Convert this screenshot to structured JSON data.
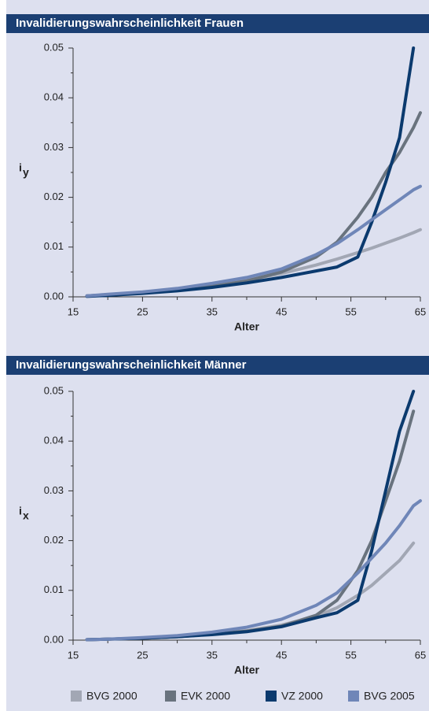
{
  "chart_data": [
    {
      "type": "line",
      "title": "Invalidierungswahrscheinlichkeit Frauen",
      "xlabel": "Alter",
      "ylabel": "i",
      "ylabel_sub": "y",
      "x": [
        17,
        20,
        25,
        30,
        35,
        40,
        45,
        50,
        53,
        56,
        58,
        60,
        62,
        64,
        65
      ],
      "xlim": [
        15,
        65
      ],
      "xticks": [
        15,
        25,
        35,
        45,
        55,
        65
      ],
      "ylim": [
        0,
        0.05
      ],
      "yticks": [
        {
          "value": 0,
          "label": "0.00"
        },
        {
          "value": 0.01,
          "label": "0.01"
        },
        {
          "value": 0.02,
          "label": "0.02"
        },
        {
          "value": 0.03,
          "label": "0.03"
        },
        {
          "value": 0.04,
          "label": "0.04"
        },
        {
          "value": 0.05,
          "label": "0.05"
        }
      ],
      "series": [
        {
          "name": "BVG 2000",
          "color": "#a2a7b4",
          "values": [
            0.0002,
            0.0004,
            0.0008,
            0.0014,
            0.0022,
            0.0033,
            0.0047,
            0.0064,
            0.0076,
            0.0089,
            0.0098,
            0.0108,
            0.0118,
            0.0129,
            0.0135
          ]
        },
        {
          "name": "EVK 2000",
          "color": "#69737e",
          "values": [
            0.0002,
            0.0004,
            0.0008,
            0.0013,
            0.0021,
            0.0032,
            0.005,
            0.008,
            0.011,
            0.016,
            0.02,
            0.025,
            0.029,
            0.034,
            0.037
          ]
        },
        {
          "name": "VZ 2000",
          "color": "#0b3a6e",
          "values": [
            0.0001,
            0.0003,
            0.0007,
            0.0012,
            0.0019,
            0.0028,
            0.0039,
            0.0052,
            0.006,
            0.008,
            0.015,
            0.023,
            0.032,
            0.05,
            null
          ]
        },
        {
          "name": "BVG 2005",
          "color": "#6f86b8",
          "values": [
            0.0002,
            0.0005,
            0.001,
            0.0017,
            0.0027,
            0.0039,
            0.0056,
            0.0085,
            0.0107,
            0.0135,
            0.0155,
            0.0175,
            0.0195,
            0.0215,
            0.0222
          ]
        }
      ]
    },
    {
      "type": "line",
      "title": "Invalidierungswahrscheinlichkeit Männer",
      "xlabel": "Alter",
      "ylabel": "i",
      "ylabel_sub": "x",
      "x": [
        17,
        20,
        25,
        30,
        35,
        40,
        45,
        50,
        53,
        56,
        58,
        60,
        62,
        64,
        65
      ],
      "xlim": [
        15,
        65
      ],
      "xticks": [
        15,
        25,
        35,
        45,
        55,
        65
      ],
      "ylim": [
        0,
        0.05
      ],
      "yticks": [
        {
          "value": 0,
          "label": "0.00"
        },
        {
          "value": 0.01,
          "label": "0.01"
        },
        {
          "value": 0.02,
          "label": "0.02"
        },
        {
          "value": 0.03,
          "label": "0.03"
        },
        {
          "value": 0.04,
          "label": "0.04"
        },
        {
          "value": 0.05,
          "label": "0.05"
        }
      ],
      "series": [
        {
          "name": "BVG 2000",
          "color": "#a2a7b4",
          "values": [
            0.0001,
            0.0002,
            0.0004,
            0.0007,
            0.0012,
            0.0019,
            0.003,
            0.0048,
            0.0065,
            0.009,
            0.011,
            0.0135,
            0.016,
            0.0195,
            null
          ]
        },
        {
          "name": "EVK 2000",
          "color": "#69737e",
          "values": [
            0.0001,
            0.0002,
            0.0004,
            0.0007,
            0.0012,
            0.0018,
            0.0028,
            0.005,
            0.008,
            0.014,
            0.02,
            0.028,
            0.036,
            0.046,
            null
          ]
        },
        {
          "name": "VZ 2000",
          "color": "#0b3a6e",
          "values": [
            0.0001,
            0.0002,
            0.0004,
            0.0007,
            0.0011,
            0.0017,
            0.0027,
            0.0045,
            0.0055,
            0.008,
            0.018,
            0.03,
            0.042,
            0.05,
            null
          ]
        },
        {
          "name": "BVG 2005",
          "color": "#6f86b8",
          "values": [
            0.0001,
            0.0002,
            0.0005,
            0.0009,
            0.0016,
            0.0026,
            0.0042,
            0.007,
            0.0095,
            0.0135,
            0.0165,
            0.0195,
            0.023,
            0.027,
            0.028
          ]
        }
      ]
    }
  ]
}
